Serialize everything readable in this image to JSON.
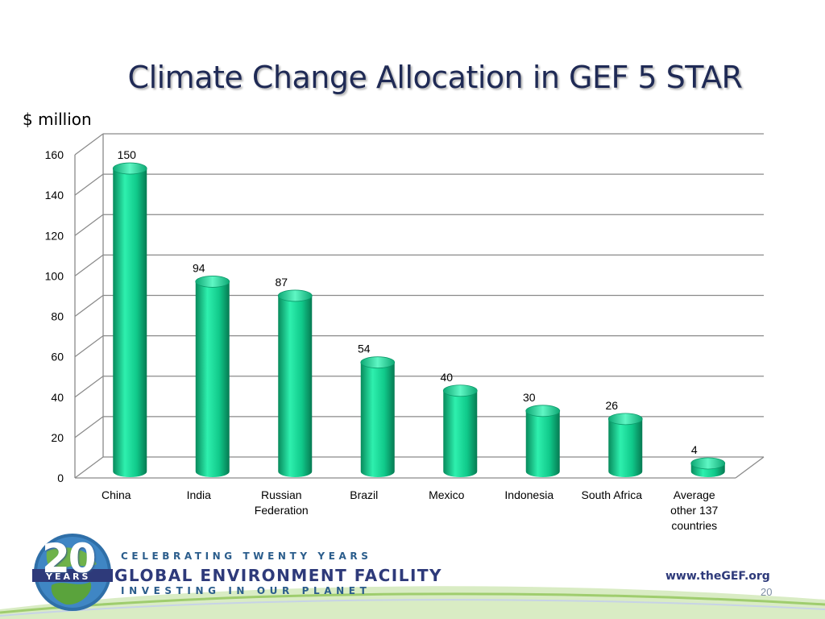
{
  "slide": {
    "title": "Climate Change Allocation in GEF 5 STAR",
    "unit_label": "$ million",
    "page_number": "20"
  },
  "chart_data": {
    "type": "bar",
    "title": "Climate Change Allocation in GEF 5 STAR",
    "ylabel": "$ million",
    "xlabel": "",
    "categories": [
      "China",
      "India",
      "Russian Federation",
      "Brazil",
      "Mexico",
      "Indonesia",
      "South Africa",
      "Average other 137 countries"
    ],
    "category_lines": [
      [
        "China"
      ],
      [
        "India"
      ],
      [
        "Russian",
        "Federation"
      ],
      [
        "Brazil"
      ],
      [
        "Mexico"
      ],
      [
        "Indonesia"
      ],
      [
        "South Africa"
      ],
      [
        "Average",
        "other 137",
        "countries"
      ]
    ],
    "values": [
      150,
      94,
      87,
      54,
      40,
      30,
      26,
      4
    ],
    "data_labels": [
      "150",
      "94",
      "87",
      "54",
      "40",
      "30",
      "26",
      "4"
    ],
    "ylim": [
      0,
      160
    ],
    "yticks": [
      0,
      20,
      40,
      60,
      80,
      100,
      120,
      140,
      160
    ],
    "grid": true,
    "legend": "none",
    "bar_color": "#10c98a",
    "bar_highlight": "#2ef0ae",
    "bar_shadow": "#078a5c"
  },
  "footer": {
    "logo_number": "20",
    "logo_years": "YEARS",
    "celebrating": "CELEBRATING TWENTY YEARS",
    "org_name": "GLOBAL ENVIRONMENT FACILITY",
    "tagline": "INVESTING IN OUR PLANET",
    "website": "www.theGEF.org"
  }
}
